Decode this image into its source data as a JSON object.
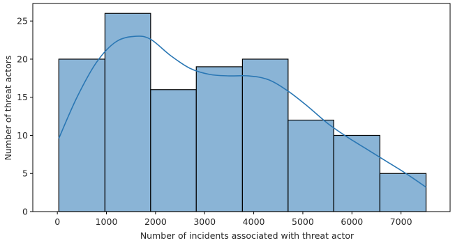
{
  "chart_data": {
    "type": "bar",
    "subtype": "histogram with kde",
    "xlabel": "Number of incidents associated with threat actor",
    "ylabel": "Number of threat actors",
    "xlim": [
      -500,
      8000
    ],
    "ylim": [
      0,
      27.3
    ],
    "grid": false,
    "bins": [
      {
        "start": 30,
        "end": 970,
        "count": 20
      },
      {
        "start": 970,
        "end": 1900,
        "count": 26
      },
      {
        "start": 1900,
        "end": 2830,
        "count": 16
      },
      {
        "start": 2830,
        "end": 3770,
        "count": 19
      },
      {
        "start": 3770,
        "end": 4700,
        "count": 20
      },
      {
        "start": 4700,
        "end": 5630,
        "count": 12
      },
      {
        "start": 5630,
        "end": 6570,
        "count": 10
      },
      {
        "start": 6570,
        "end": 7510,
        "count": 5
      }
    ],
    "x_ticks": [
      0,
      1000,
      2000,
      3000,
      4000,
      5000,
      6000,
      7000
    ],
    "y_ticks": [
      0,
      5,
      10,
      15,
      20,
      25
    ],
    "kde": {
      "x": [
        30,
        400,
        800,
        1200,
        1600,
        1900,
        2300,
        2700,
        3100,
        3500,
        3900,
        4300,
        4700,
        5100,
        5500,
        5900,
        6300,
        6700,
        7100,
        7510
      ],
      "y": [
        9.6,
        15.0,
        19.6,
        22.3,
        23.0,
        22.6,
        20.5,
        18.8,
        18.0,
        17.8,
        17.8,
        17.3,
        15.8,
        13.8,
        11.6,
        9.8,
        8.2,
        6.6,
        5.0,
        3.2
      ]
    },
    "colors": {
      "bar_fill": "#8ab4d6",
      "bar_edge": "#000000",
      "kde_line": "#2a77b4"
    }
  }
}
